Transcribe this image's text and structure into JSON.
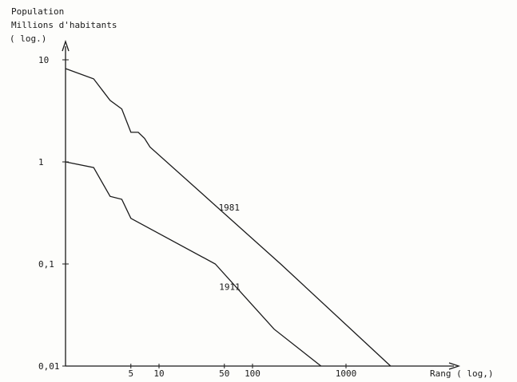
{
  "chart_data": {
    "type": "line",
    "title": "",
    "ylabel_lines": [
      "Population",
      "Millions d'habitants",
      "( log.)"
    ],
    "xlabel": "Rang  ( log,)",
    "x_scale": "log",
    "y_scale": "log",
    "xlim": [
      1,
      5000
    ],
    "ylim": [
      0.01,
      15
    ],
    "x_ticks": [
      {
        "value": 5,
        "label": "5"
      },
      {
        "value": 10,
        "label": "10"
      },
      {
        "value": 50,
        "label": "50"
      },
      {
        "value": 100,
        "label": "100"
      },
      {
        "value": 1000,
        "label": "1000"
      }
    ],
    "y_ticks": [
      {
        "value": 0.01,
        "label": "0,01"
      },
      {
        "value": 0.1,
        "label": "0,1"
      },
      {
        "value": 1,
        "label": "1"
      },
      {
        "value": 10,
        "label": "10"
      }
    ],
    "grid": false,
    "legend": "none",
    "series": [
      {
        "name": "1981",
        "x": [
          1,
          2,
          3,
          4,
          5,
          6,
          7,
          8,
          200,
          3000
        ],
        "y": [
          8.2,
          6.5,
          4.0,
          3.3,
          1.95,
          1.95,
          1.7,
          1.4,
          0.1,
          0.01
        ]
      },
      {
        "name": "1911",
        "x": [
          1,
          2,
          3,
          4,
          5,
          40,
          170,
          540
        ],
        "y": [
          1.0,
          0.88,
          0.46,
          0.43,
          0.28,
          0.1,
          0.023,
          0.01
        ]
      }
    ]
  }
}
